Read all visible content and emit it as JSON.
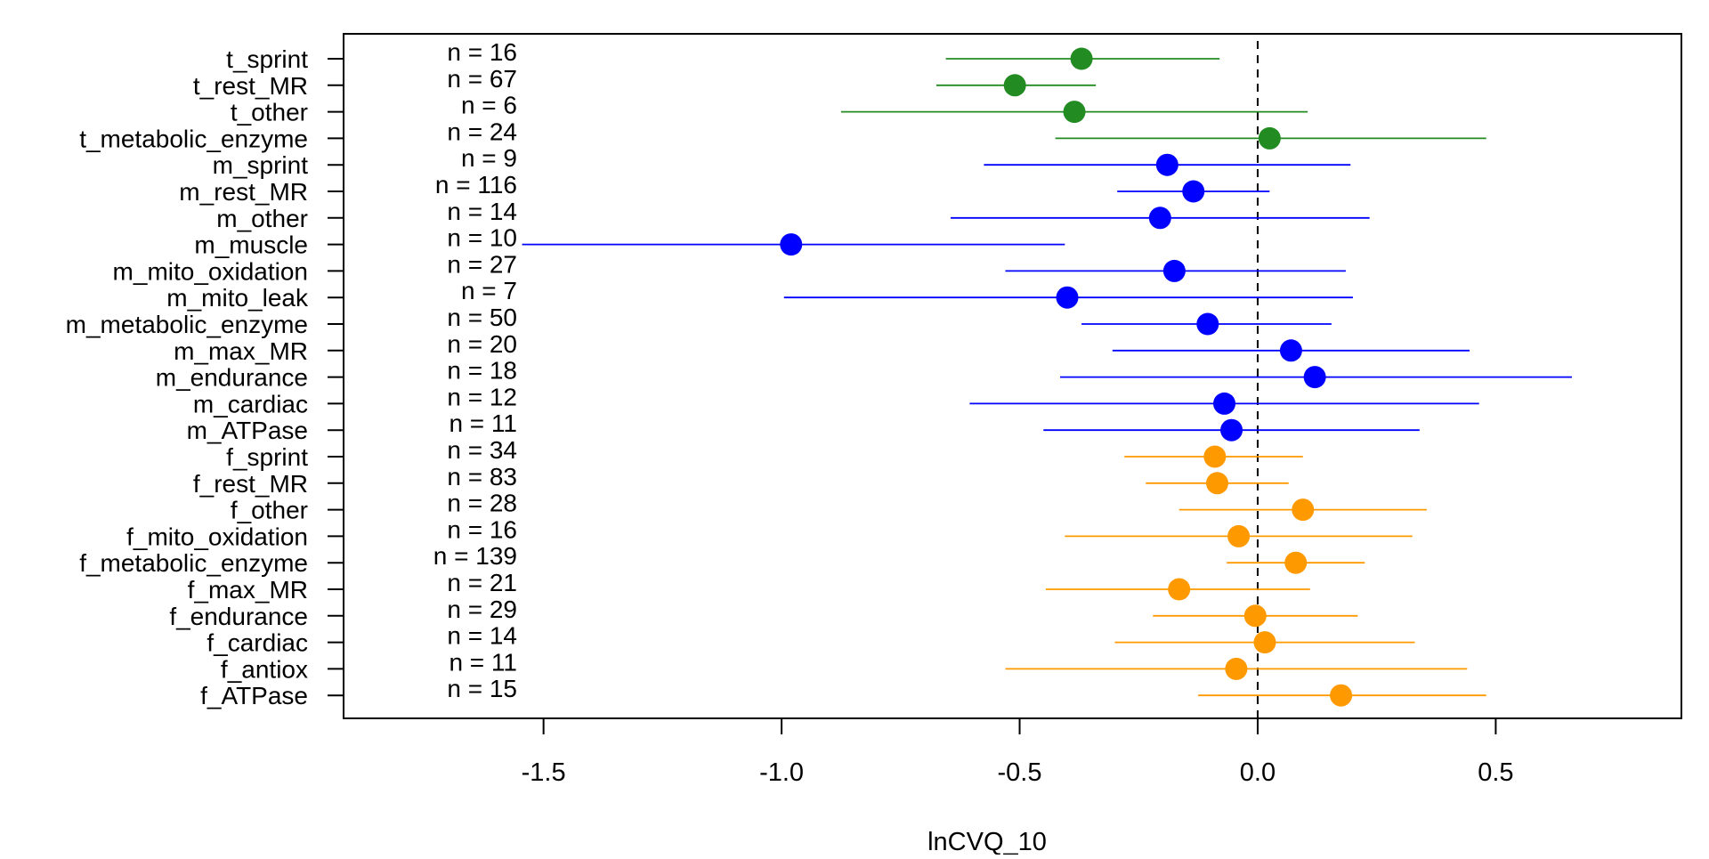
{
  "chart_data": {
    "type": "forest",
    "title": "",
    "xlabel": "lnCVQ_10",
    "ylabel": "",
    "xlim": [
      -1.92,
      0.89
    ],
    "xticks": [
      -1.5,
      -1.0,
      -0.5,
      0.0,
      0.5
    ],
    "xtick_labels": [
      "-1.5",
      "-1.0",
      "-0.5",
      "0.0",
      "0.5"
    ],
    "reference_line": 0.0,
    "group_colors": {
      "t": "#228B22",
      "m": "#0000FF",
      "f": "#FF9900"
    },
    "rows": [
      {
        "label": "t_sprint",
        "n_label": "n = 16",
        "group": "t",
        "estimate": -0.37,
        "lower": -0.655,
        "upper": -0.08
      },
      {
        "label": "t_rest_MR",
        "n_label": "n = 67",
        "group": "t",
        "estimate": -0.51,
        "lower": -0.675,
        "upper": -0.34
      },
      {
        "label": "t_other",
        "n_label": "n = 6",
        "group": "t",
        "estimate": -0.385,
        "lower": -0.875,
        "upper": 0.105
      },
      {
        "label": "t_metabolic_enzyme",
        "n_label": "n = 24",
        "group": "t",
        "estimate": 0.025,
        "lower": -0.425,
        "upper": 0.48
      },
      {
        "label": "m_sprint",
        "n_label": "n = 9",
        "group": "m",
        "estimate": -0.19,
        "lower": -0.575,
        "upper": 0.195
      },
      {
        "label": "m_rest_MR",
        "n_label": "n = 116",
        "group": "m",
        "estimate": -0.135,
        "lower": -0.295,
        "upper": 0.025
      },
      {
        "label": "m_other",
        "n_label": "n = 14",
        "group": "m",
        "estimate": -0.205,
        "lower": -0.645,
        "upper": 0.235
      },
      {
        "label": "m_muscle",
        "n_label": "n = 10",
        "group": "m",
        "estimate": -0.98,
        "lower": -1.545,
        "upper": -0.405
      },
      {
        "label": "m_mito_oxidation",
        "n_label": "n = 27",
        "group": "m",
        "estimate": -0.175,
        "lower": -0.53,
        "upper": 0.185
      },
      {
        "label": "m_mito_leak",
        "n_label": "n = 7",
        "group": "m",
        "estimate": -0.4,
        "lower": -0.995,
        "upper": 0.2
      },
      {
        "label": "m_metabolic_enzyme",
        "n_label": "n = 50",
        "group": "m",
        "estimate": -0.105,
        "lower": -0.37,
        "upper": 0.155
      },
      {
        "label": "m_max_MR",
        "n_label": "n = 20",
        "group": "m",
        "estimate": 0.07,
        "lower": -0.305,
        "upper": 0.445
      },
      {
        "label": "m_endurance",
        "n_label": "n = 18",
        "group": "m",
        "estimate": 0.12,
        "lower": -0.415,
        "upper": 0.66
      },
      {
        "label": "m_cardiac",
        "n_label": "n = 12",
        "group": "m",
        "estimate": -0.07,
        "lower": -0.605,
        "upper": 0.465
      },
      {
        "label": "m_ATPase",
        "n_label": "n = 11",
        "group": "m",
        "estimate": -0.055,
        "lower": -0.45,
        "upper": 0.34
      },
      {
        "label": "f_sprint",
        "n_label": "n = 34",
        "group": "f",
        "estimate": -0.09,
        "lower": -0.28,
        "upper": 0.095
      },
      {
        "label": "f_rest_MR",
        "n_label": "n = 83",
        "group": "f",
        "estimate": -0.085,
        "lower": -0.235,
        "upper": 0.065
      },
      {
        "label": "f_other",
        "n_label": "n = 28",
        "group": "f",
        "estimate": 0.095,
        "lower": -0.165,
        "upper": 0.355
      },
      {
        "label": "f_mito_oxidation",
        "n_label": "n = 16",
        "group": "f",
        "estimate": -0.04,
        "lower": -0.405,
        "upper": 0.325
      },
      {
        "label": "f_metabolic_enzyme",
        "n_label": "n = 139",
        "group": "f",
        "estimate": 0.08,
        "lower": -0.065,
        "upper": 0.225
      },
      {
        "label": "f_max_MR",
        "n_label": "n = 21",
        "group": "f",
        "estimate": -0.165,
        "lower": -0.445,
        "upper": 0.11
      },
      {
        "label": "f_endurance",
        "n_label": "n = 29",
        "group": "f",
        "estimate": -0.005,
        "lower": -0.22,
        "upper": 0.21
      },
      {
        "label": "f_cardiac",
        "n_label": "n = 14",
        "group": "f",
        "estimate": 0.015,
        "lower": -0.3,
        "upper": 0.33
      },
      {
        "label": "f_antiox",
        "n_label": "n = 11",
        "group": "f",
        "estimate": -0.045,
        "lower": -0.53,
        "upper": 0.44
      },
      {
        "label": "f_ATPase",
        "n_label": "n = 15",
        "group": "f",
        "estimate": 0.175,
        "lower": -0.125,
        "upper": 0.48
      }
    ]
  }
}
